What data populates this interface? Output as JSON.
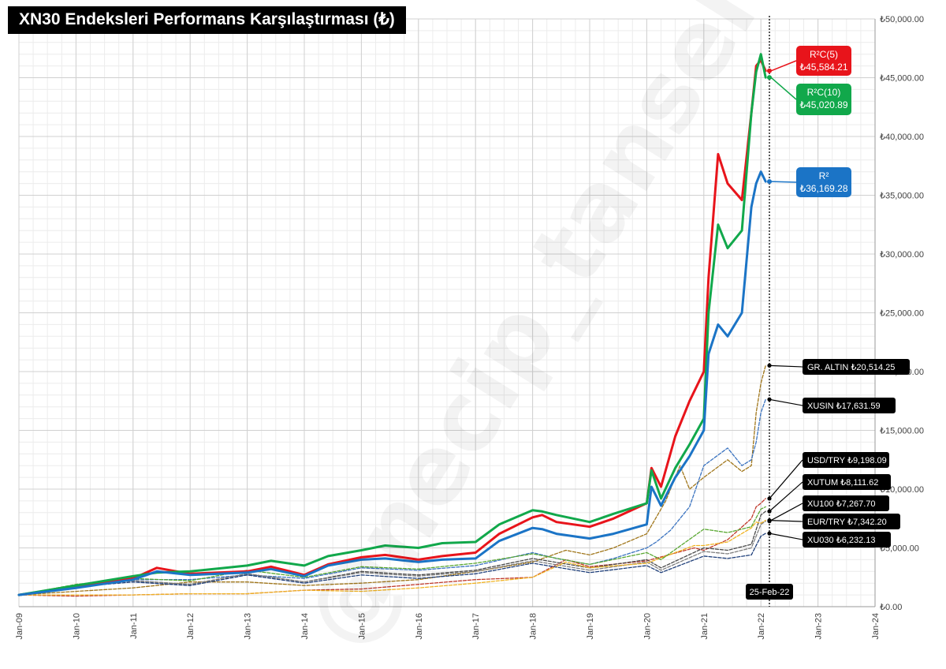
{
  "title": "XN30 Endeksleri Performans Karşılaştırması (₺)",
  "watermark": "@necip_tansel",
  "chart_data": {
    "type": "line",
    "title": "XN30 Endeksleri Performans Karşılaştırması (₺)",
    "xlabel": "",
    "ylabel": "",
    "x_range": [
      "2009-01-01",
      "2024-01-01"
    ],
    "x_ticks": [
      "Jan-09",
      "Jan-10",
      "Jan-11",
      "Jan-12",
      "Jan-13",
      "Jan-14",
      "Jan-15",
      "Jan-16",
      "Jan-17",
      "Jan-18",
      "Jan-19",
      "Jan-20",
      "Jan-21",
      "Jan-22",
      "Jan-23",
      "Jan-24"
    ],
    "ylim": [
      0,
      50000
    ],
    "y_ticks": [
      "₺0.00",
      "₺5,000.00",
      "₺10,000.00",
      "₺15,000.00",
      "₺20,000.00",
      "₺25,000.00",
      "₺30,000.00",
      "₺35,000.00",
      "₺40,000.00",
      "₺45,000.00",
      "₺50,000.00"
    ],
    "grid": true,
    "marker_date_label": "25-Feb-22",
    "marker_date": "2022-02-25",
    "series": [
      {
        "name": "R²C(5)",
        "style": "solid",
        "color": "#e8141b",
        "label": "R²C(5)",
        "value_label": "₺45,584.21",
        "x": [
          "2009-01",
          "2010-01",
          "2011-01",
          "2011-06",
          "2012-01",
          "2013-01",
          "2013-06",
          "2014-01",
          "2014-06",
          "2015-01",
          "2015-06",
          "2016-01",
          "2016-06",
          "2017-01",
          "2017-06",
          "2018-01",
          "2018-03",
          "2018-06",
          "2019-01",
          "2019-06",
          "2020-01",
          "2020-02",
          "2020-04",
          "2020-07",
          "2020-10",
          "2021-01",
          "2021-02",
          "2021-04",
          "2021-06",
          "2021-09",
          "2021-11",
          "2021-12",
          "2022-01",
          "2022-02"
        ],
        "y": [
          1000,
          1700,
          2400,
          3300,
          2800,
          3000,
          3400,
          2700,
          3600,
          4200,
          4400,
          4000,
          4300,
          4600,
          6200,
          7600,
          7800,
          7200,
          6800,
          7500,
          8800,
          11800,
          10200,
          14500,
          17500,
          20000,
          28000,
          38500,
          36000,
          34600,
          42000,
          46000,
          46500,
          45584
        ]
      },
      {
        "name": "R²C(10)",
        "style": "solid",
        "color": "#11a84b",
        "label": "R²C(10)",
        "value_label": "₺45,020.89",
        "x": [
          "2009-01",
          "2010-01",
          "2011-01",
          "2011-06",
          "2012-01",
          "2013-01",
          "2013-06",
          "2014-01",
          "2014-06",
          "2015-01",
          "2015-06",
          "2016-01",
          "2016-06",
          "2017-01",
          "2017-06",
          "2018-01",
          "2018-03",
          "2018-06",
          "2019-01",
          "2019-06",
          "2020-01",
          "2020-02",
          "2020-04",
          "2020-07",
          "2020-10",
          "2021-01",
          "2021-02",
          "2021-04",
          "2021-06",
          "2021-09",
          "2021-11",
          "2021-12",
          "2022-01",
          "2022-02"
        ],
        "y": [
          1000,
          1800,
          2600,
          2900,
          3000,
          3500,
          3900,
          3500,
          4300,
          4800,
          5200,
          5000,
          5400,
          5500,
          7000,
          8200,
          8100,
          7800,
          7200,
          7900,
          8800,
          11600,
          9200,
          11800,
          13800,
          16000,
          25000,
          32500,
          30500,
          32000,
          42000,
          45500,
          47000,
          45021
        ]
      },
      {
        "name": "R²",
        "style": "solid",
        "color": "#1b74c6",
        "label": "R²",
        "value_label": "₺36,169.28",
        "x": [
          "2009-01",
          "2010-01",
          "2011-01",
          "2011-06",
          "2012-01",
          "2013-01",
          "2013-06",
          "2014-01",
          "2014-06",
          "2015-01",
          "2015-06",
          "2016-01",
          "2016-06",
          "2017-01",
          "2017-06",
          "2018-01",
          "2018-03",
          "2018-06",
          "2019-01",
          "2019-06",
          "2020-01",
          "2020-02",
          "2020-04",
          "2020-07",
          "2020-10",
          "2021-01",
          "2021-02",
          "2021-04",
          "2021-06",
          "2021-09",
          "2021-11",
          "2021-12",
          "2022-01",
          "2022-02"
        ],
        "y": [
          1000,
          1600,
          2300,
          3000,
          2700,
          2900,
          3200,
          2600,
          3500,
          4000,
          4100,
          3800,
          4000,
          4100,
          5600,
          6700,
          6600,
          6200,
          5800,
          6200,
          7000,
          10200,
          8600,
          11000,
          12800,
          15000,
          21500,
          24000,
          23000,
          25000,
          34000,
          36000,
          37000,
          36169
        ]
      },
      {
        "name": "GR. ALTIN",
        "style": "dashed",
        "color": "#a0761a",
        "label": "GR. ALTIN",
        "value_label": "₺20,514.25",
        "x": [
          "2009-01",
          "2010-01",
          "2011-01",
          "2012-01",
          "2013-01",
          "2014-01",
          "2015-01",
          "2016-01",
          "2017-01",
          "2018-01",
          "2018-08",
          "2019-01",
          "2019-06",
          "2020-01",
          "2020-05",
          "2020-08",
          "2020-10",
          "2021-01",
          "2021-06",
          "2021-09",
          "2021-11",
          "2021-12",
          "2022-01",
          "2022-02"
        ],
        "y": [
          1000,
          1300,
          1600,
          2100,
          2100,
          1800,
          2000,
          2300,
          3000,
          3800,
          4800,
          4400,
          5000,
          6200,
          9000,
          12000,
          10000,
          11000,
          12500,
          11500,
          12000,
          16500,
          19000,
          20514
        ]
      },
      {
        "name": "XUSIN",
        "style": "dashed",
        "color": "#3a73c0",
        "label": "XUSIN",
        "value_label": "₺17,631.59",
        "x": [
          "2009-01",
          "2010-01",
          "2011-01",
          "2012-01",
          "2013-01",
          "2014-01",
          "2015-01",
          "2016-01",
          "2017-01",
          "2018-01",
          "2018-06",
          "2019-01",
          "2019-06",
          "2020-01",
          "2020-03",
          "2020-06",
          "2020-10",
          "2021-01",
          "2021-06",
          "2021-09",
          "2021-11",
          "2021-12",
          "2022-01",
          "2022-02"
        ],
        "y": [
          1000,
          1700,
          2300,
          2300,
          2700,
          2400,
          3300,
          3100,
          3500,
          4600,
          4100,
          3600,
          4100,
          5000,
          5500,
          6500,
          8500,
          12000,
          13500,
          12000,
          12500,
          14000,
          16500,
          17632
        ]
      },
      {
        "name": "USD/TRY",
        "style": "dashed",
        "color": "#c0392b",
        "label": "USD/TRY",
        "value_label": "₺9,198.09",
        "x": [
          "2009-01",
          "2010-01",
          "2011-01",
          "2012-01",
          "2013-01",
          "2014-01",
          "2015-01",
          "2016-01",
          "2017-01",
          "2018-01",
          "2018-08",
          "2019-01",
          "2020-01",
          "2020-11",
          "2021-01",
          "2021-06",
          "2021-11",
          "2021-12",
          "2022-01",
          "2022-02"
        ],
        "y": [
          1000,
          900,
          1000,
          1100,
          1100,
          1400,
          1500,
          1900,
          2300,
          2500,
          4000,
          3400,
          3900,
          5000,
          4800,
          5700,
          7500,
          8500,
          8800,
          9198
        ]
      },
      {
        "name": "XUTUM",
        "style": "dashed",
        "color": "#4a4a4a",
        "label": "XUTUM",
        "value_label": "₺8,111.62",
        "x": [
          "2009-01",
          "2010-01",
          "2011-01",
          "2012-01",
          "2013-01",
          "2014-01",
          "2015-01",
          "2016-01",
          "2017-01",
          "2018-01",
          "2019-01",
          "2020-01",
          "2020-04",
          "2021-01",
          "2021-06",
          "2021-11",
          "2022-01",
          "2022-02"
        ],
        "y": [
          1000,
          1800,
          2200,
          1900,
          2800,
          2100,
          3000,
          2700,
          3100,
          4100,
          3300,
          4000,
          3300,
          5000,
          4800,
          5300,
          7800,
          8112
        ]
      },
      {
        "name": "XU100",
        "style": "dashed",
        "color": "#7f7f7f",
        "label": "XU100",
        "value_label": "₺7,267.70",
        "x": [
          "2009-01",
          "2010-01",
          "2011-01",
          "2012-01",
          "2013-01",
          "2014-01",
          "2015-01",
          "2016-01",
          "2017-01",
          "2018-01",
          "2019-01",
          "2020-01",
          "2020-04",
          "2021-01",
          "2021-06",
          "2021-11",
          "2022-01",
          "2022-02"
        ],
        "y": [
          1000,
          1800,
          2200,
          1900,
          2800,
          2100,
          2900,
          2600,
          3000,
          3900,
          3100,
          3800,
          3100,
          4700,
          4500,
          5000,
          7000,
          7268
        ]
      },
      {
        "name": "EUR/TRY",
        "style": "dashed",
        "color": "#f0b323",
        "label": "EUR/TRY",
        "value_label": "₺7,342.20",
        "x": [
          "2009-01",
          "2010-01",
          "2011-01",
          "2012-01",
          "2013-01",
          "2014-01",
          "2015-01",
          "2016-01",
          "2017-01",
          "2018-01",
          "2018-08",
          "2019-01",
          "2020-01",
          "2020-11",
          "2021-01",
          "2021-06",
          "2021-11",
          "2021-12",
          "2022-01",
          "2022-02"
        ],
        "y": [
          1000,
          1000,
          1000,
          1100,
          1100,
          1400,
          1300,
          1600,
          2000,
          2500,
          3800,
          3300,
          3700,
          5200,
          5200,
          5500,
          6700,
          7200,
          7100,
          7342
        ]
      },
      {
        "name": "XU030",
        "style": "dashed",
        "color": "#1f3f7a",
        "label": "XU030",
        "value_label": "₺6,232.13",
        "x": [
          "2009-01",
          "2010-01",
          "2011-01",
          "2012-01",
          "2013-01",
          "2014-01",
          "2015-01",
          "2016-01",
          "2017-01",
          "2018-01",
          "2019-01",
          "2020-01",
          "2020-04",
          "2021-01",
          "2021-06",
          "2021-11",
          "2022-01",
          "2022-02"
        ],
        "y": [
          1000,
          1700,
          2100,
          1800,
          2700,
          2000,
          2700,
          2400,
          2800,
          3700,
          2900,
          3500,
          2900,
          4300,
          4100,
          4400,
          6000,
          6232
        ]
      },
      {
        "name": "(unlabeled green)",
        "style": "dashed",
        "color": "#5aa832",
        "label": "",
        "value_label": "",
        "x": [
          "2009-01",
          "2010-01",
          "2011-01",
          "2012-01",
          "2013-01",
          "2014-01",
          "2015-01",
          "2016-01",
          "2017-01",
          "2018-01",
          "2019-01",
          "2020-01",
          "2020-04",
          "2021-01",
          "2021-06",
          "2021-11",
          "2022-01",
          "2022-02"
        ],
        "y": [
          1000,
          1900,
          2400,
          2200,
          3100,
          2500,
          3400,
          3200,
          3700,
          4500,
          3600,
          4600,
          4000,
          6600,
          6300,
          6800,
          8300,
          8500
        ]
      }
    ]
  }
}
